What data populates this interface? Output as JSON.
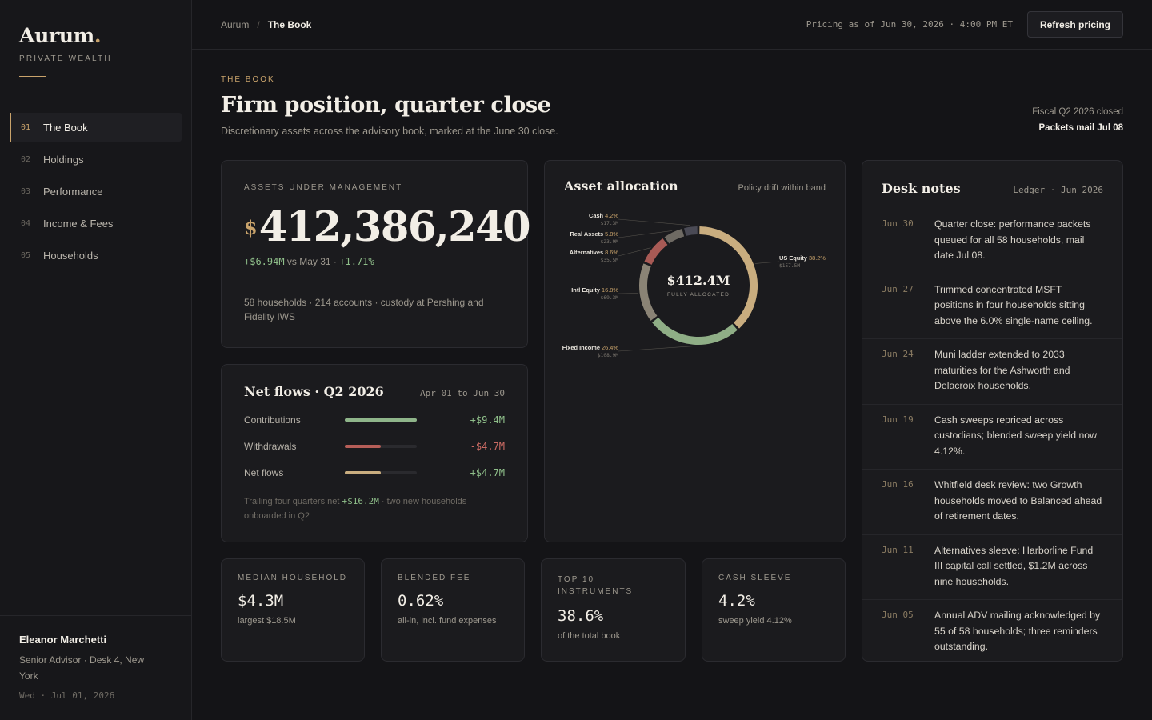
{
  "sidebar": {
    "brand_name": "Aurum",
    "brand_dot": ".",
    "brand_sub": "PRIVATE WEALTH",
    "nav": [
      {
        "num": "01",
        "label": "The Book"
      },
      {
        "num": "02",
        "label": "Holdings"
      },
      {
        "num": "03",
        "label": "Performance"
      },
      {
        "num": "04",
        "label": "Income & Fees"
      },
      {
        "num": "05",
        "label": "Households"
      }
    ],
    "user": {
      "name": "Eleanor Marchetti",
      "role": "Senior Advisor · Desk 4, New York",
      "date": "Wed · Jul 01, 2026"
    }
  },
  "topbar": {
    "crumb_root": "Aurum",
    "crumb_sep": "/",
    "crumb_current": "The Book",
    "pricing": "Pricing as of Jun 30, 2026 · 4:00 PM ET",
    "refresh_label": "Refresh pricing"
  },
  "header": {
    "eyebrow": "THE BOOK",
    "title": "Firm position, quarter close",
    "subtitle": "Discretionary assets across the advisory book, marked at the June 30 close.",
    "fiscal_status": "Fiscal Q2 2026 closed",
    "packets": "Packets mail Jul 08"
  },
  "aum": {
    "label": "ASSETS UNDER MANAGEMENT",
    "currency": "$",
    "value": "412,386,240",
    "delta_abs": "+$6.94M",
    "delta_mid": " vs May 31 · ",
    "delta_pct": "+1.71%",
    "meta": "58 households · 214 accounts · custody at Pershing and Fidelity IWS"
  },
  "flows": {
    "title": "Net flows · Q2 2026",
    "range": "Apr 01 to Jun 30",
    "rows": [
      {
        "label": "Contributions",
        "value": "+$9.4M",
        "fill": 1.0,
        "color": "#8fb58a",
        "sign": "pos"
      },
      {
        "label": "Withdrawals",
        "value": "-$4.7M",
        "fill": 0.5,
        "color": "#b65e58",
        "sign": "neg"
      },
      {
        "label": "Net flows",
        "value": "+$4.7M",
        "fill": 0.5,
        "color": "#c9ad7f",
        "sign": "pos"
      }
    ],
    "note_pre": "Trailing four quarters net ",
    "note_value": "+$16.2M",
    "note_post": " · two new households onboarded in Q2"
  },
  "allocation": {
    "title": "Asset allocation",
    "drift": "Policy drift within band",
    "center_value": "$412.4M",
    "center_label": "FULLY ALLOCATED"
  },
  "chart_data": {
    "type": "pie",
    "title": "Asset allocation",
    "center_label": "$412.4M",
    "slices": [
      {
        "name": "US Equity",
        "pct": 38.2,
        "pct_label": "38.2%",
        "amount": "$157.5M",
        "color": "#c9ad7f"
      },
      {
        "name": "Fixed Income",
        "pct": 26.4,
        "pct_label": "26.4%",
        "amount": "$108.9M",
        "color": "#8fae86"
      },
      {
        "name": "Intl Equity",
        "pct": 16.8,
        "pct_label": "16.8%",
        "amount": "$69.3M",
        "color": "#8a8375"
      },
      {
        "name": "Alternatives",
        "pct": 8.6,
        "pct_label": "8.6%",
        "amount": "$35.5M",
        "color": "#a85a55"
      },
      {
        "name": "Real Assets",
        "pct": 5.8,
        "pct_label": "5.8%",
        "amount": "$23.9M",
        "color": "#6e6a63"
      },
      {
        "name": "Cash",
        "pct": 4.2,
        "pct_label": "4.2%",
        "amount": "$17.3M",
        "color": "#4a4a55"
      }
    ]
  },
  "notes": {
    "title": "Desk notes",
    "meta": "Ledger · Jun 2026",
    "items": [
      {
        "date": "Jun 30",
        "text": "Quarter close: performance packets queued for all 58 households, mail date Jul 08."
      },
      {
        "date": "Jun 27",
        "text": "Trimmed concentrated MSFT positions in four households sitting above the 6.0% single-name ceiling."
      },
      {
        "date": "Jun 24",
        "text": "Muni ladder extended to 2033 maturities for the Ashworth and Delacroix households."
      },
      {
        "date": "Jun 19",
        "text": "Cash sweeps repriced across custodians; blended sweep yield now 4.12%."
      },
      {
        "date": "Jun 16",
        "text": "Whitfield desk review: two Growth households moved to Balanced ahead of retirement dates."
      },
      {
        "date": "Jun 11",
        "text": "Alternatives sleeve: Harborline Fund III capital call settled, $1.2M across nine households."
      },
      {
        "date": "Jun 05",
        "text": "Annual ADV mailing acknowledged by 55 of 58 households; three reminders outstanding."
      }
    ]
  },
  "kpis": [
    {
      "label": "MEDIAN HOUSEHOLD",
      "value": "$4.3M",
      "sub": "largest $18.5M"
    },
    {
      "label": "BLENDED FEE",
      "value": "0.62%",
      "sub": "all-in, incl. fund expenses"
    },
    {
      "label": "TOP 10 INSTRUMENTS",
      "value": "38.6%",
      "sub": "of the total book"
    },
    {
      "label": "CASH SLEEVE",
      "value": "4.2%",
      "sub": "sweep yield 4.12%"
    }
  ]
}
